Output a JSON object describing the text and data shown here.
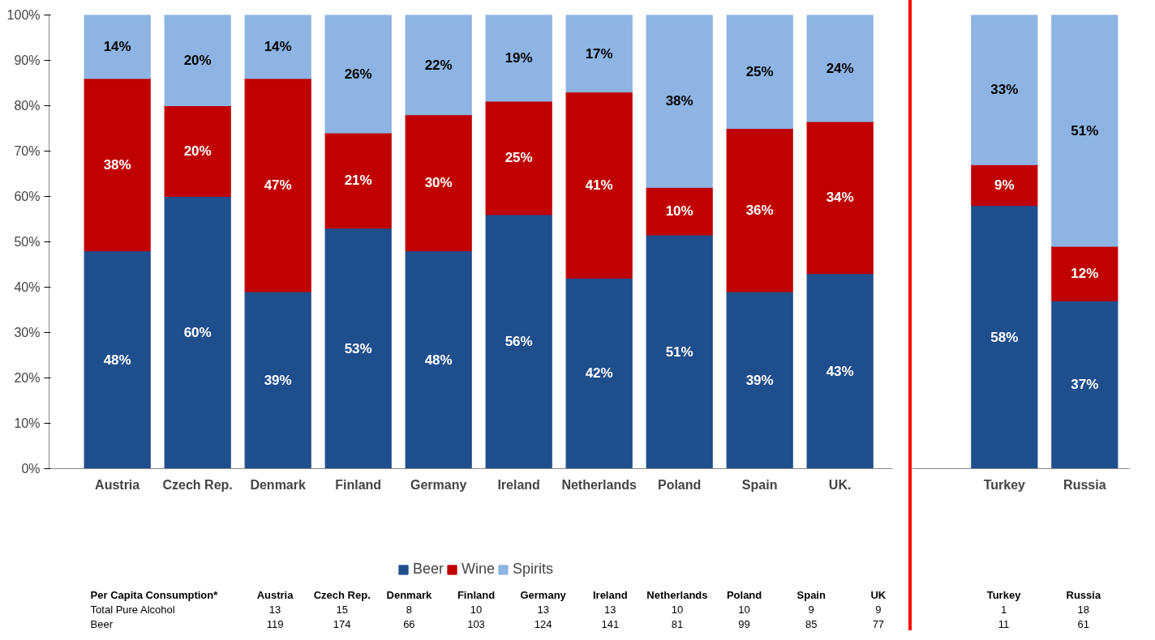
{
  "chart_data": [
    {
      "type": "bar",
      "stacked": true,
      "categories": [
        "Austria",
        "Czech Rep.",
        "Denmark",
        "Finland",
        "Germany",
        "Ireland",
        "Netherlands",
        "Poland",
        "Spain",
        "UK."
      ],
      "series": [
        {
          "name": "Beer",
          "color": "#1f4e8c",
          "values": [
            48,
            60,
            39,
            53,
            48,
            56,
            42,
            51.5,
            39,
            43
          ],
          "value_labels": [
            "48%",
            "60%",
            "39%",
            "53%",
            "48%",
            "56%",
            "42%",
            "51%",
            "39%",
            "43%"
          ]
        },
        {
          "name": "Wine",
          "color": "#c00000",
          "values": [
            38,
            20,
            47,
            21,
            30,
            25,
            41,
            10.5,
            36,
            33.5
          ],
          "value_labels": [
            "38%",
            "20%",
            "47%",
            "21%",
            "30%",
            "25%",
            "41%",
            "10%",
            "36%",
            "34%"
          ]
        },
        {
          "name": "Spirits",
          "color": "#8db4e2",
          "values": [
            14,
            20,
            14,
            26,
            22,
            19,
            17,
            38,
            25,
            23.5
          ],
          "value_labels": [
            "14%",
            "20%",
            "14%",
            "26%",
            "22%",
            "19%",
            "17%",
            "38%",
            "25%",
            "24%"
          ]
        }
      ],
      "ylim": [
        0,
        100
      ],
      "yticks": [
        {
          "value": 0,
          "label": "0%"
        },
        {
          "value": 10,
          "label": "10%"
        },
        {
          "value": 20,
          "label": "20%"
        },
        {
          "value": 30,
          "label": "30%"
        },
        {
          "value": 40,
          "label": "40%"
        },
        {
          "value": 50,
          "label": "50%"
        },
        {
          "value": 60,
          "label": "60%"
        },
        {
          "value": 70,
          "label": "70%"
        },
        {
          "value": 80,
          "label": "80%"
        },
        {
          "value": 90,
          "label": "90%"
        },
        {
          "value": 100,
          "label": "100%"
        }
      ],
      "legend": "bottom"
    },
    {
      "type": "bar",
      "stacked": true,
      "categories": [
        "Turkey",
        "Russia"
      ],
      "series": [
        {
          "color": "#1f4e8c",
          "values": [
            58,
            37
          ],
          "value_labels": [
            "58%",
            "37%"
          ]
        },
        {
          "color": "#c00000",
          "values": [
            9,
            12
          ],
          "value_labels": [
            "9%",
            "12%"
          ]
        },
        {
          "color": "#8db4e2",
          "values": [
            33,
            51
          ],
          "value_labels": [
            "33%",
            "51%"
          ]
        }
      ],
      "ylim": [
        0,
        100
      ],
      "tick_labels": "x"
    },
    {
      "type": "other",
      "title": "Per Capita Consumption*",
      "categories": [
        "Austria",
        "Czech Rep.",
        "Denmark",
        "Finland",
        "Germany",
        "Ireland",
        "Netherlands",
        "Poland",
        "Spain",
        "UK",
        "Turkey",
        "Russia"
      ],
      "series": [
        {
          "name": "Total Pure Alcohol",
          "values": [
            13,
            15,
            8,
            10,
            13,
            13,
            10,
            10,
            9,
            9,
            1,
            18
          ]
        },
        {
          "name": "Beer",
          "values": [
            119,
            174,
            66,
            103,
            124,
            141,
            81,
            99,
            85,
            77,
            11,
            61
          ]
        }
      ],
      "data_labels": true
    }
  ]
}
